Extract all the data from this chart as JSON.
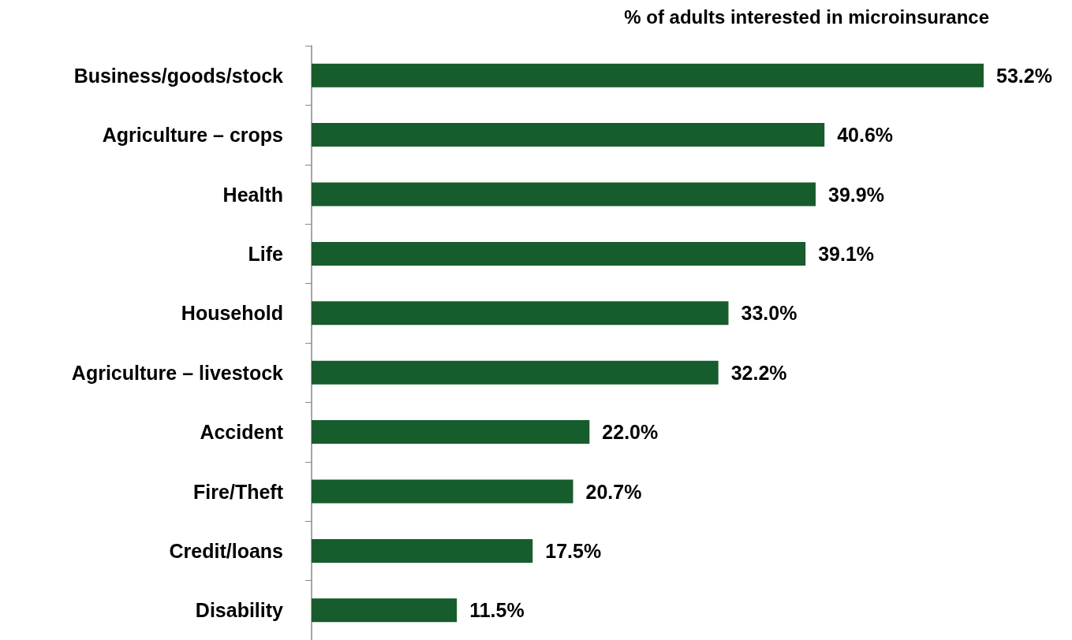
{
  "chart_data": {
    "type": "bar",
    "orientation": "horizontal",
    "title": "% of adults interested in microinsurance",
    "categories": [
      "Business/goods/stock",
      "Agriculture – crops",
      "Health",
      "Life",
      "Household",
      "Agriculture – livestock",
      "Accident",
      "Fire/Theft",
      "Credit/loans",
      "Disability"
    ],
    "values": [
      53.2,
      40.6,
      39.9,
      39.1,
      33.0,
      32.2,
      22.0,
      20.7,
      17.5,
      11.5
    ],
    "value_labels": [
      "53.2%",
      "40.6%",
      "39.9%",
      "39.1%",
      "33.0%",
      "32.2%",
      "22.0%",
      "20.7%",
      "17.5%",
      "11.5%"
    ],
    "color": "#175c2c"
  }
}
